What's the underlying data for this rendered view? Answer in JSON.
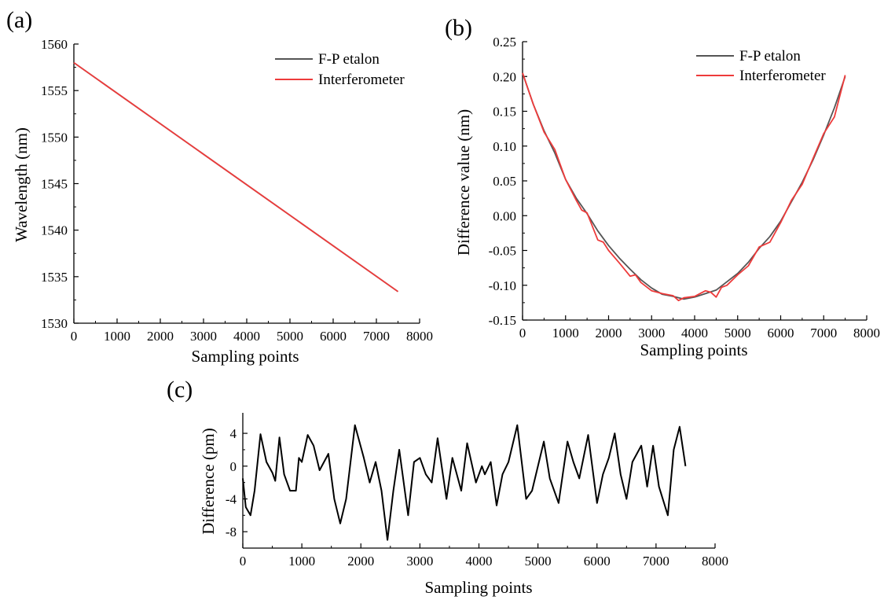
{
  "colors": {
    "fp_etalon": "#555555",
    "interferometer": "#ee3b3b",
    "difference": "#000000",
    "axis": "#000000"
  },
  "chart_data": [
    {
      "id": "a",
      "panel_label": "(a)",
      "type": "line",
      "xlabel": "Sampling points",
      "ylabel": "Wavelength (nm)",
      "xlim": [
        0,
        8000
      ],
      "ylim": [
        1530,
        1560
      ],
      "xticks": [
        0,
        1000,
        2000,
        3000,
        4000,
        5000,
        6000,
        7000,
        8000
      ],
      "yticks": [
        1530,
        1535,
        1540,
        1545,
        1550,
        1555,
        1560
      ],
      "legend": {
        "placement": "top-right",
        "entries": [
          "F-P etalon",
          "Interferometer"
        ]
      },
      "series": [
        {
          "name": "F-P etalon",
          "x": [
            0,
            7500
          ],
          "y": [
            1558.0,
            1533.4
          ]
        },
        {
          "name": "Interferometer",
          "x": [
            0,
            7500
          ],
          "y": [
            1558.0,
            1533.4
          ]
        }
      ]
    },
    {
      "id": "b",
      "panel_label": "(b)",
      "type": "line",
      "xlabel": "Sampling points",
      "ylabel": "Difference value (nm)",
      "xlim": [
        0,
        8000
      ],
      "ylim": [
        -0.15,
        0.25
      ],
      "xticks": [
        0,
        1000,
        2000,
        3000,
        4000,
        5000,
        6000,
        7000,
        8000
      ],
      "yticks": [
        -0.15,
        -0.1,
        -0.05,
        0.0,
        0.05,
        0.1,
        0.15,
        0.2,
        0.25
      ],
      "ytick_labels": [
        "-0.15",
        "-0.10",
        "-0.05",
        "0.00",
        "0.05",
        "0.10",
        "0.15",
        "0.20",
        "0.25"
      ],
      "legend": {
        "placement": "top-right",
        "entries": [
          "F-P etalon",
          "Interferometer"
        ]
      },
      "series": [
        {
          "name": "F-P etalon",
          "x": [
            0,
            250,
            500,
            750,
            1000,
            1250,
            1500,
            1750,
            2000,
            2250,
            2500,
            2750,
            3000,
            3250,
            3500,
            3750,
            4000,
            4250,
            4500,
            4750,
            5000,
            5250,
            5500,
            5750,
            6000,
            6250,
            6500,
            6750,
            7000,
            7250,
            7500
          ],
          "y": [
            0.205,
            0.16,
            0.122,
            0.09,
            0.052,
            0.025,
            0.003,
            -0.022,
            -0.043,
            -0.061,
            -0.077,
            -0.092,
            -0.104,
            -0.113,
            -0.116,
            -0.12,
            -0.117,
            -0.112,
            -0.107,
            -0.095,
            -0.083,
            -0.067,
            -0.047,
            -0.03,
            -0.008,
            0.02,
            0.048,
            0.08,
            0.116,
            0.155,
            0.2
          ]
        },
        {
          "name": "Interferometer",
          "x": [
            0,
            250,
            500,
            750,
            1000,
            1250,
            1375,
            1500,
            1750,
            1875,
            2000,
            2250,
            2500,
            2625,
            2750,
            3000,
            3250,
            3500,
            3625,
            3750,
            4000,
            4250,
            4375,
            4500,
            4625,
            4750,
            5000,
            5250,
            5500,
            5750,
            6000,
            6250,
            6500,
            6750,
            7000,
            7250,
            7500
          ],
          "y": [
            0.205,
            0.16,
            0.12,
            0.095,
            0.052,
            0.022,
            0.008,
            0.004,
            -0.035,
            -0.038,
            -0.05,
            -0.068,
            -0.087,
            -0.085,
            -0.096,
            -0.108,
            -0.112,
            -0.115,
            -0.122,
            -0.118,
            -0.116,
            -0.108,
            -0.11,
            -0.117,
            -0.103,
            -0.1,
            -0.085,
            -0.072,
            -0.045,
            -0.038,
            -0.01,
            0.022,
            0.045,
            0.082,
            0.118,
            0.142,
            0.202
          ]
        }
      ]
    },
    {
      "id": "c",
      "panel_label": "(c)",
      "type": "line",
      "xlabel": "Sampling points",
      "ylabel": "Difference (pm)",
      "xlim": [
        0,
        8000
      ],
      "ylim": [
        -10,
        6.5
      ],
      "xticks": [
        0,
        1000,
        2000,
        3000,
        4000,
        5000,
        6000,
        7000,
        8000
      ],
      "yticks": [
        -8,
        -4,
        0,
        4
      ],
      "series": [
        {
          "name": "",
          "x": [
            0,
            50,
            130,
            200,
            300,
            400,
            500,
            550,
            620,
            700,
            800,
            900,
            950,
            1000,
            1100,
            1200,
            1300,
            1450,
            1550,
            1650,
            1750,
            1900,
            2050,
            2150,
            2250,
            2350,
            2450,
            2550,
            2650,
            2800,
            2900,
            3000,
            3100,
            3200,
            3300,
            3450,
            3550,
            3700,
            3800,
            3950,
            4050,
            4100,
            4200,
            4300,
            4400,
            4500,
            4650,
            4800,
            4900,
            5100,
            5200,
            5350,
            5500,
            5600,
            5700,
            5850,
            6000,
            6100,
            6200,
            6300,
            6400,
            6500,
            6600,
            6750,
            6850,
            6950,
            7050,
            7200,
            7300,
            7400,
            7500
          ],
          "y": [
            -1.5,
            -5.0,
            -6.0,
            -3.0,
            3.9,
            0.5,
            -0.8,
            -1.8,
            3.5,
            -1.0,
            -3.0,
            -3.0,
            1.0,
            0.5,
            3.8,
            2.5,
            -0.5,
            1.5,
            -4.0,
            -7.0,
            -4.0,
            5.0,
            1.0,
            -2.0,
            0.5,
            -3.0,
            -9.0,
            -3.0,
            2.0,
            -6.0,
            0.5,
            1.0,
            -1.0,
            -2.0,
            3.4,
            -4.0,
            1.0,
            -3.0,
            2.8,
            -2.0,
            0.0,
            -1.0,
            0.5,
            -4.8,
            -1.0,
            0.5,
            5.0,
            -4.0,
            -3.0,
            3.0,
            -1.5,
            -4.5,
            3.0,
            0.5,
            -1.5,
            3.8,
            -4.5,
            -1.0,
            1.0,
            4.0,
            -1.0,
            -4.0,
            0.5,
            2.5,
            -2.5,
            2.5,
            -2.5,
            -6.0,
            2.0,
            4.8,
            0.0
          ]
        }
      ]
    }
  ]
}
